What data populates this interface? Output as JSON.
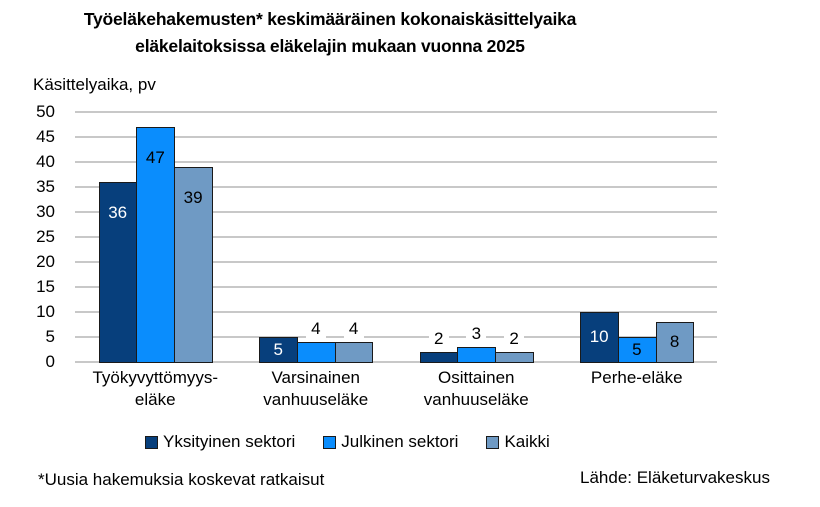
{
  "chart_data": {
    "type": "bar",
    "title": "Työeläkehakemusten* keskimääräinen kokonaiskäsittelyaika eläkelaitoksissa eläkelajin mukaan vuonna 2025",
    "title_lines": [
      "Työeläkehakemusten* keskimääräinen kokonaiskäsittelyaika",
      "eläkelaitoksissa eläkelajin mukaan vuonna 2025"
    ],
    "xlabel": "",
    "ylabel": "Käsittelyaika, pv",
    "ylim": [
      0,
      50
    ],
    "yticks": [
      0,
      5,
      10,
      15,
      20,
      25,
      30,
      35,
      40,
      45,
      50
    ],
    "grid": true,
    "legend_position": "bottom",
    "categories": [
      "Työkyvyttömyys-eläke",
      "Varsinainen vanhuuseläke",
      "Osittainen vanhuuseläke",
      "Perhe-eläke"
    ],
    "category_lines": [
      [
        "Työkyvyttömyys-",
        "eläke"
      ],
      [
        "Varsinainen",
        "vanhuuseläke"
      ],
      [
        "Osittainen",
        "vanhuuseläke"
      ],
      [
        "Perhe-eläke"
      ]
    ],
    "series": [
      {
        "name": "Yksityinen sektori",
        "color": "#073F7C",
        "label_color": "#ffffff",
        "values": [
          36,
          5,
          2,
          10
        ]
      },
      {
        "name": "Julkinen sektori",
        "color": "#0A8DFD",
        "label_color": "#000000",
        "values": [
          47,
          4,
          3,
          5
        ]
      },
      {
        "name": "Kaikki",
        "color": "#6F9AC4",
        "label_color": "#000000",
        "values": [
          39,
          4,
          2,
          8
        ]
      }
    ],
    "footnote": "*Uusia hakemuksia koskevat ratkaisut",
    "source": "Lähde: Eläketurvakeskus"
  }
}
